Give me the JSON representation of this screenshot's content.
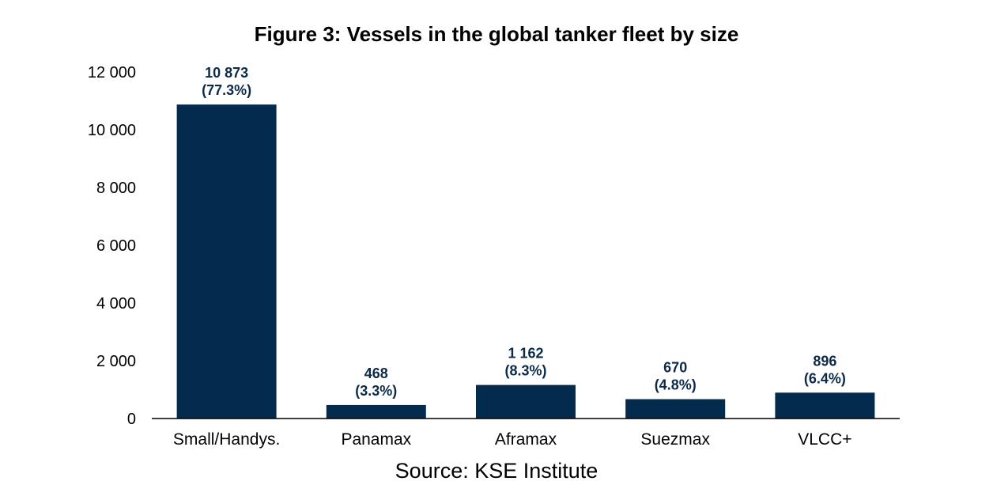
{
  "chart_data": {
    "type": "bar",
    "title": "Figure 3: Vessels in the global tanker fleet by size",
    "source": "Source: KSE Institute",
    "categories": [
      "Small/Handys.",
      "Panamax",
      "Aframax",
      "Suezmax",
      "VLCC+"
    ],
    "values": [
      10873,
      468,
      1162,
      670,
      896
    ],
    "value_labels": [
      "10 873",
      "468",
      "1 162",
      "670",
      "896"
    ],
    "pct_labels": [
      "(77.3%)",
      "(3.3%)",
      "(8.3%)",
      "(4.8%)",
      "(6.4%)"
    ],
    "yticks": [
      0,
      2000,
      4000,
      6000,
      8000,
      10000,
      12000
    ],
    "ytick_labels": [
      "0",
      "2 000",
      "4 000",
      "6 000",
      "8 000",
      "10 000",
      "12 000"
    ],
    "ylim": [
      0,
      12000
    ],
    "xlabel": "",
    "ylabel": "",
    "grid": false,
    "bar_color": "#032b4e",
    "label_color": "#0b2a4a"
  }
}
